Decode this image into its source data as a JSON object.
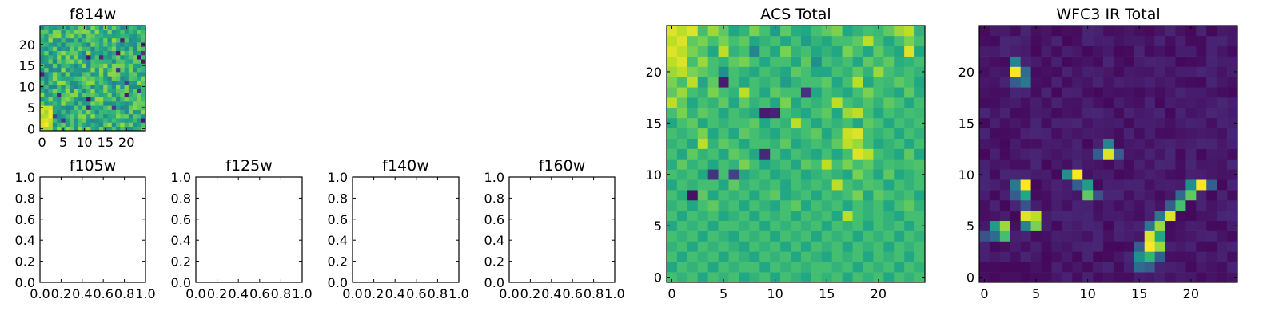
{
  "chart_data": [
    {
      "type": "heatmap",
      "title": "f814w",
      "grid_size": [
        25,
        25
      ],
      "xlim": [
        -0.5,
        24.5
      ],
      "ylim": [
        -0.5,
        24.5
      ],
      "xticks": [
        0,
        5,
        10,
        15,
        20
      ],
      "yticks": [
        0,
        5,
        10,
        15,
        20
      ],
      "colormap": "viridis",
      "rows": [],
      "grid": false
    },
    {
      "type": "heatmap",
      "title": "f105w",
      "xlim": [
        0.0,
        1.0
      ],
      "ylim": [
        0.0,
        1.0
      ],
      "xticks": [
        "0.0",
        "0.2",
        "0.4",
        "0.6",
        "0.8",
        "1.0"
      ],
      "yticks": [
        "0.0",
        "0.2",
        "0.4",
        "0.6",
        "0.8",
        "1.0"
      ],
      "rows": [],
      "grid": false
    },
    {
      "type": "heatmap",
      "title": "f125w",
      "xlim": [
        0.0,
        1.0
      ],
      "ylim": [
        0.0,
        1.0
      ],
      "xticks": [
        "0.0",
        "0.2",
        "0.4",
        "0.6",
        "0.8",
        "1.0"
      ],
      "yticks": [
        "0.0",
        "0.2",
        "0.4",
        "0.6",
        "0.8",
        "1.0"
      ],
      "rows": [],
      "grid": false
    },
    {
      "type": "heatmap",
      "title": "f140w",
      "xlim": [
        0.0,
        1.0
      ],
      "ylim": [
        0.0,
        1.0
      ],
      "xticks": [
        "0.0",
        "0.2",
        "0.4",
        "0.6",
        "0.8",
        "1.0"
      ],
      "yticks": [
        "0.0",
        "0.2",
        "0.4",
        "0.6",
        "0.8",
        "1.0"
      ],
      "rows": [],
      "grid": false
    },
    {
      "type": "heatmap",
      "title": "f160w",
      "xlim": [
        0.0,
        1.0
      ],
      "ylim": [
        0.0,
        1.0
      ],
      "xticks": [
        "0.0",
        "0.2",
        "0.4",
        "0.6",
        "0.8",
        "1.0"
      ],
      "yticks": [
        "0.0",
        "0.2",
        "0.4",
        "0.6",
        "0.8",
        "1.0"
      ],
      "rows": [],
      "grid": false
    },
    {
      "type": "heatmap",
      "title": "ACS Total",
      "grid_size": [
        25,
        25
      ],
      "xlim": [
        -0.5,
        24.5
      ],
      "ylim": [
        -0.5,
        24.5
      ],
      "xticks": [
        0,
        5,
        10,
        15,
        20
      ],
      "yticks": [
        0,
        5,
        10,
        15,
        20
      ],
      "colormap": "viridis",
      "value_range": [
        0,
        1
      ],
      "rows": [
        [
          0.95,
          0.9,
          0.95,
          0.7,
          0.85,
          0.75,
          0.6,
          0.65,
          0.8,
          0.7,
          0.55,
          0.75,
          0.62,
          0.6,
          0.7,
          0.75,
          0.8,
          0.6,
          0.65,
          0.7,
          0.68,
          0.75,
          0.85,
          0.9,
          0.65
        ],
        [
          0.9,
          0.95,
          0.75,
          0.8,
          0.7,
          0.8,
          0.7,
          0.75,
          0.6,
          0.65,
          0.7,
          0.6,
          0.7,
          0.55,
          0.65,
          0.6,
          0.7,
          0.7,
          0.75,
          0.9,
          0.7,
          0.6,
          0.7,
          0.8,
          0.7
        ],
        [
          0.95,
          0.9,
          0.8,
          0.72,
          0.6,
          0.9,
          0.65,
          0.7,
          0.45,
          0.7,
          0.6,
          0.8,
          0.65,
          0.7,
          0.6,
          0.65,
          0.6,
          0.8,
          0.7,
          0.6,
          0.75,
          0.65,
          0.6,
          0.95,
          0.6
        ],
        [
          0.9,
          0.95,
          0.7,
          0.85,
          0.7,
          0.65,
          0.75,
          0.8,
          0.7,
          0.6,
          0.7,
          0.7,
          0.6,
          0.75,
          0.5,
          0.7,
          0.65,
          0.7,
          0.6,
          0.75,
          0.68,
          0.75,
          0.62,
          0.65,
          0.7
        ],
        [
          0.85,
          0.9,
          0.8,
          0.75,
          0.7,
          0.5,
          0.7,
          0.65,
          0.6,
          0.7,
          0.65,
          0.6,
          0.75,
          0.7,
          0.6,
          0.6,
          0.7,
          0.65,
          0.75,
          0.65,
          0.85,
          0.7,
          0.65,
          0.7,
          0.65
        ],
        [
          0.8,
          0.7,
          0.9,
          0.6,
          0.75,
          0.08,
          0.7,
          0.6,
          0.7,
          0.65,
          0.7,
          0.55,
          0.65,
          0.7,
          0.7,
          0.75,
          0.6,
          0.7,
          0.9,
          0.6,
          0.7,
          0.68,
          0.75,
          0.7,
          0.6
        ],
        [
          0.75,
          0.85,
          0.7,
          0.65,
          0.8,
          0.7,
          0.65,
          0.9,
          0.7,
          0.6,
          0.75,
          0.7,
          0.7,
          0.15,
          0.6,
          0.7,
          0.65,
          0.6,
          0.7,
          0.8,
          0.7,
          0.65,
          0.6,
          0.75,
          0.62
        ],
        [
          0.9,
          0.75,
          0.6,
          0.7,
          0.65,
          0.75,
          0.6,
          0.75,
          0.65,
          0.7,
          0.6,
          0.8,
          0.6,
          0.7,
          0.65,
          0.7,
          0.9,
          0.7,
          0.65,
          0.72,
          0.65,
          0.75,
          0.7,
          0.6,
          0.7
        ],
        [
          0.7,
          0.8,
          0.65,
          0.75,
          0.7,
          0.6,
          0.7,
          0.65,
          0.6,
          0.08,
          0.1,
          0.7,
          0.65,
          0.6,
          0.7,
          0.75,
          0.6,
          0.85,
          0.9,
          0.7,
          0.6,
          0.7,
          0.65,
          0.7,
          0.68
        ],
        [
          0.6,
          0.7,
          0.75,
          0.6,
          0.7,
          0.65,
          0.7,
          0.7,
          0.75,
          0.6,
          0.7,
          0.65,
          0.9,
          0.7,
          0.6,
          0.7,
          0.65,
          0.7,
          0.6,
          0.75,
          0.7,
          0.6,
          0.7,
          0.65,
          0.7
        ],
        [
          0.7,
          0.65,
          0.7,
          0.8,
          0.6,
          0.7,
          0.6,
          0.75,
          0.7,
          0.65,
          0.6,
          0.7,
          0.65,
          0.7,
          0.75,
          0.6,
          0.7,
          0.92,
          0.95,
          0.7,
          0.65,
          0.7,
          0.6,
          0.7,
          0.65
        ],
        [
          0.65,
          0.7,
          0.6,
          0.9,
          0.65,
          0.75,
          0.7,
          0.6,
          0.7,
          0.7,
          0.65,
          0.75,
          0.6,
          0.65,
          0.7,
          0.65,
          0.75,
          0.9,
          0.85,
          0.7,
          0.6,
          0.65,
          0.7,
          0.6,
          0.7
        ],
        [
          0.7,
          0.6,
          0.75,
          0.65,
          0.7,
          0.6,
          0.75,
          0.7,
          0.6,
          0.12,
          0.7,
          0.6,
          0.7,
          0.65,
          0.6,
          0.7,
          0.6,
          0.7,
          0.95,
          0.9,
          0.7,
          0.65,
          0.6,
          0.75,
          0.6
        ],
        [
          0.62,
          0.75,
          0.65,
          0.7,
          0.6,
          0.7,
          0.65,
          0.8,
          0.7,
          0.6,
          0.65,
          0.7,
          0.6,
          0.75,
          0.7,
          0.9,
          0.7,
          0.8,
          0.7,
          0.75,
          0.65,
          0.7,
          0.68,
          0.7,
          0.72
        ],
        [
          0.7,
          0.65,
          0.7,
          0.6,
          0.15,
          0.7,
          0.2,
          0.6,
          0.65,
          0.7,
          0.6,
          0.65,
          0.7,
          0.6,
          0.65,
          0.7,
          0.65,
          0.6,
          0.8,
          0.7,
          0.6,
          0.75,
          0.6,
          0.65,
          0.7
        ],
        [
          0.6,
          0.7,
          0.65,
          0.7,
          0.7,
          0.6,
          0.75,
          0.65,
          0.7,
          0.65,
          0.7,
          0.6,
          0.7,
          0.65,
          0.7,
          0.65,
          0.9,
          0.7,
          0.65,
          0.72,
          0.7,
          0.6,
          0.7,
          0.65,
          0.7
        ],
        [
          0.7,
          0.62,
          0.05,
          0.75,
          0.6,
          0.7,
          0.65,
          0.7,
          0.6,
          0.7,
          0.75,
          0.6,
          0.65,
          0.7,
          0.6,
          0.7,
          0.65,
          0.7,
          0.8,
          0.6,
          0.75,
          0.7,
          0.65,
          0.7,
          0.6
        ],
        [
          0.65,
          0.7,
          0.6,
          0.7,
          0.75,
          0.65,
          0.7,
          0.6,
          0.7,
          0.65,
          0.6,
          0.7,
          0.75,
          0.6,
          0.7,
          0.65,
          0.7,
          0.6,
          0.7,
          0.65,
          0.7,
          0.6,
          0.7,
          0.75,
          0.65
        ],
        [
          0.7,
          0.6,
          0.7,
          0.65,
          0.7,
          0.6,
          0.65,
          0.7,
          0.6,
          0.7,
          0.65,
          0.7,
          0.6,
          0.7,
          0.65,
          0.7,
          0.6,
          0.9,
          0.7,
          0.65,
          0.7,
          0.65,
          0.6,
          0.7,
          0.7
        ],
        [
          0.6,
          0.7,
          0.65,
          0.7,
          0.6,
          0.7,
          0.7,
          0.65,
          0.7,
          0.6,
          0.7,
          0.65,
          0.7,
          0.65,
          0.7,
          0.6,
          0.7,
          0.65,
          0.7,
          0.6,
          0.7,
          0.65,
          0.7,
          0.6,
          0.7
        ],
        [
          0.7,
          0.65,
          0.7,
          0.6,
          0.7,
          0.65,
          0.6,
          0.7,
          0.65,
          0.7,
          0.6,
          0.7,
          0.65,
          0.7,
          0.6,
          0.7,
          0.65,
          0.7,
          0.6,
          0.7,
          0.65,
          0.7,
          0.6,
          0.7,
          0.65
        ],
        [
          0.65,
          0.7,
          0.6,
          0.7,
          0.65,
          0.7,
          0.65,
          0.6,
          0.7,
          0.65,
          0.7,
          0.6,
          0.7,
          0.6,
          0.7,
          0.65,
          0.7,
          0.6,
          0.7,
          0.65,
          0.7,
          0.6,
          0.7,
          0.65,
          0.7
        ],
        [
          0.7,
          0.6,
          0.7,
          0.65,
          0.7,
          0.6,
          0.7,
          0.65,
          0.6,
          0.7,
          0.65,
          0.7,
          0.6,
          0.7,
          0.65,
          0.6,
          0.7,
          0.65,
          0.7,
          0.6,
          0.7,
          0.65,
          0.7,
          0.6,
          0.7
        ],
        [
          0.6,
          0.7,
          0.65,
          0.7,
          0.6,
          0.7,
          0.65,
          0.7,
          0.7,
          0.6,
          0.7,
          0.65,
          0.7,
          0.65,
          0.7,
          0.7,
          0.65,
          0.7,
          0.6,
          0.7,
          0.65,
          0.7,
          0.6,
          0.7,
          0.65
        ],
        [
          0.7,
          0.65,
          0.7,
          0.6,
          0.7,
          0.65,
          0.7,
          0.6,
          0.65,
          0.7,
          0.6,
          0.7,
          0.65,
          0.6,
          0.7,
          0.65,
          0.7,
          0.6,
          0.7,
          0.65,
          0.7,
          0.6,
          0.7,
          0.65,
          0.7
        ]
      ],
      "grid": false
    },
    {
      "type": "heatmap",
      "title": "WFC3 IR Total",
      "grid_size": [
        25,
        25
      ],
      "xlim": [
        -0.5,
        24.5
      ],
      "ylim": [
        -0.5,
        24.5
      ],
      "xticks": [
        0,
        5,
        10,
        15,
        20
      ],
      "yticks": [
        0,
        5,
        10,
        15,
        20
      ],
      "colormap": "viridis",
      "value_range": [
        0,
        1
      ],
      "peaks": [
        {
          "x": 3,
          "y": 20,
          "value": 1.0
        },
        {
          "x": 3,
          "y": 21,
          "value": 0.45
        },
        {
          "x": 4,
          "y": 20,
          "value": 0.35
        },
        {
          "x": 4,
          "y": 19,
          "value": 0.4
        },
        {
          "x": 3,
          "y": 19,
          "value": 0.3
        },
        {
          "x": 12,
          "y": 12,
          "value": 0.95
        },
        {
          "x": 12,
          "y": 13,
          "value": 0.45
        },
        {
          "x": 11,
          "y": 12,
          "value": 0.3
        },
        {
          "x": 13,
          "y": 12,
          "value": 0.3
        },
        {
          "x": 9,
          "y": 10,
          "value": 1.0
        },
        {
          "x": 8,
          "y": 10,
          "value": 0.5
        },
        {
          "x": 10,
          "y": 9,
          "value": 0.55
        },
        {
          "x": 10,
          "y": 8,
          "value": 0.75
        },
        {
          "x": 9,
          "y": 9,
          "value": 0.3
        },
        {
          "x": 11,
          "y": 8,
          "value": 0.25
        },
        {
          "x": 4,
          "y": 9,
          "value": 1.0
        },
        {
          "x": 4,
          "y": 8,
          "value": 0.6
        },
        {
          "x": 3,
          "y": 9,
          "value": 0.4
        },
        {
          "x": 3,
          "y": 8,
          "value": 0.3
        },
        {
          "x": 4,
          "y": 7,
          "value": 0.25
        },
        {
          "x": 4,
          "y": 6,
          "value": 0.95
        },
        {
          "x": 5,
          "y": 6,
          "value": 0.9
        },
        {
          "x": 5,
          "y": 5,
          "value": 0.8
        },
        {
          "x": 4,
          "y": 5,
          "value": 0.45
        },
        {
          "x": 1,
          "y": 5,
          "value": 0.55
        },
        {
          "x": 2,
          "y": 5,
          "value": 0.85
        },
        {
          "x": 2,
          "y": 4,
          "value": 0.7
        },
        {
          "x": 1,
          "y": 4,
          "value": 0.35
        },
        {
          "x": 0,
          "y": 4,
          "value": 0.25
        },
        {
          "x": 21,
          "y": 9,
          "value": 1.0
        },
        {
          "x": 20,
          "y": 9,
          "value": 0.5
        },
        {
          "x": 20,
          "y": 8,
          "value": 0.75
        },
        {
          "x": 22,
          "y": 9,
          "value": 0.3
        },
        {
          "x": 19,
          "y": 8,
          "value": 0.35
        },
        {
          "x": 19,
          "y": 7,
          "value": 0.7
        },
        {
          "x": 18,
          "y": 7,
          "value": 0.3
        },
        {
          "x": 18,
          "y": 6,
          "value": 0.95
        },
        {
          "x": 17,
          "y": 6,
          "value": 0.4
        },
        {
          "x": 17,
          "y": 5,
          "value": 0.85
        },
        {
          "x": 16,
          "y": 5,
          "value": 0.4
        },
        {
          "x": 16,
          "y": 4,
          "value": 0.95
        },
        {
          "x": 17,
          "y": 4,
          "value": 0.6
        },
        {
          "x": 16,
          "y": 3,
          "value": 1.0
        },
        {
          "x": 17,
          "y": 3,
          "value": 0.85
        },
        {
          "x": 15,
          "y": 3,
          "value": 0.3
        },
        {
          "x": 15,
          "y": 2,
          "value": 0.5
        },
        {
          "x": 16,
          "y": 2,
          "value": 0.65
        },
        {
          "x": 17,
          "y": 2,
          "value": 0.3
        },
        {
          "x": 15,
          "y": 1,
          "value": 0.35
        },
        {
          "x": 16,
          "y": 1,
          "value": 0.3
        }
      ],
      "grid": false
    }
  ]
}
